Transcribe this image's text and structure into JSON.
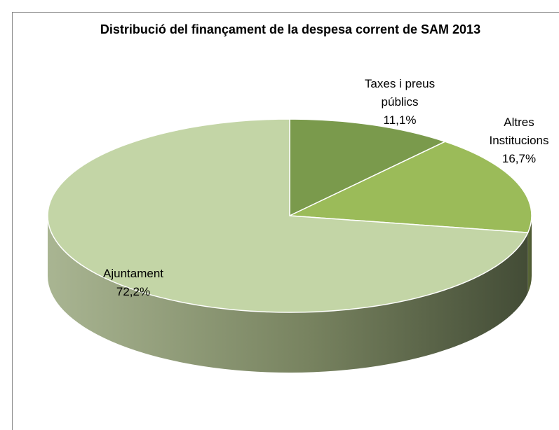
{
  "chart_data": {
    "type": "pie",
    "title": "Distribució del finançament de la despesa corrent de SAM 2013",
    "categories": [
      "Taxes i preus públics",
      "Altres Institucions",
      "Ajuntament"
    ],
    "values": [
      11.1,
      16.7,
      72.2
    ],
    "value_labels": [
      "11,1%",
      "16,7%",
      "72,2%"
    ],
    "colors": [
      "#7a9a4c",
      "#9bbb59",
      "#c3d5a6"
    ]
  }
}
